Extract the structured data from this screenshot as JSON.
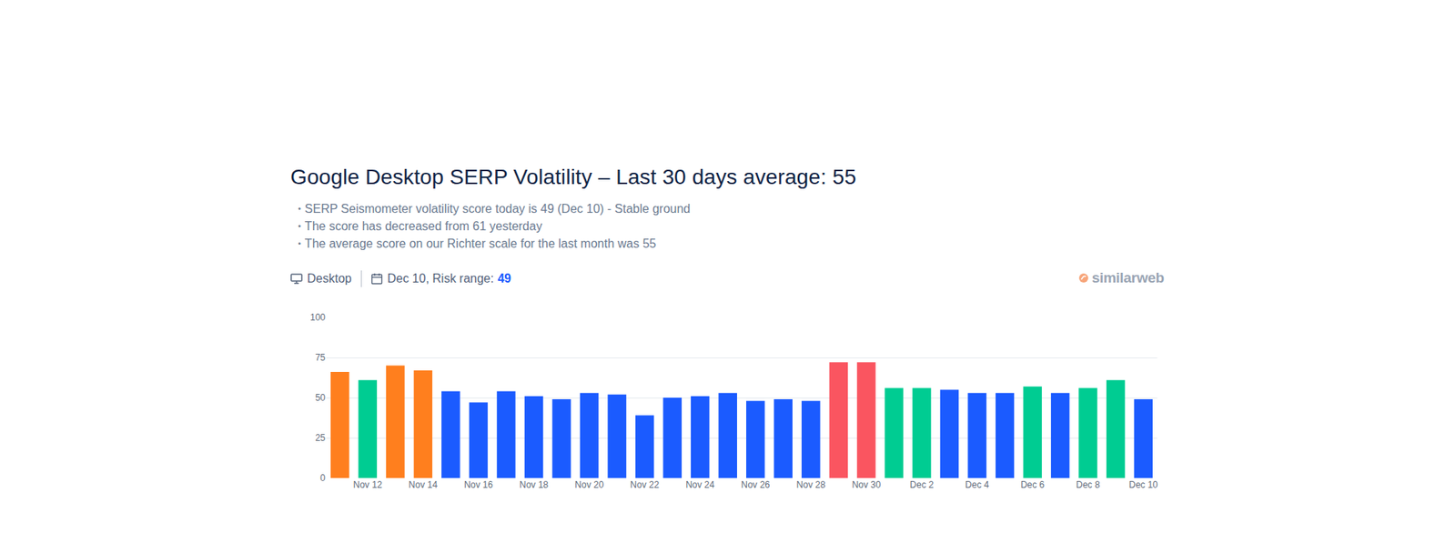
{
  "page": {
    "title": "Google Desktop SERP Volatility – Last 30 days average: 55",
    "bullets": [
      "SERP Seismometer volatility score today is 49 (Dec 10) - Stable ground",
      "The score has decreased from 61 yesterday",
      "The average score on our Richter scale for the last month was 55"
    ],
    "device": "Desktop",
    "date_label": "Dec 10, Risk range:",
    "risk_value": "49",
    "logo": "similarweb"
  },
  "chart_data": {
    "type": "bar",
    "categories": [
      null,
      "Nov 12",
      null,
      "Nov 14",
      null,
      "Nov 16",
      null,
      "Nov 18",
      null,
      "Nov 20",
      null,
      "Nov 22",
      null,
      "Nov 24",
      null,
      "Nov 26",
      null,
      "Nov 28",
      null,
      "Nov 30",
      null,
      "Dec 2",
      null,
      "Dec 4",
      null,
      "Dec 6",
      null,
      "Dec 8",
      null,
      "Dec 10"
    ],
    "values": [
      66,
      61,
      70,
      67,
      54,
      47,
      54,
      51,
      49,
      53,
      52,
      39,
      50,
      51,
      53,
      48,
      49,
      48,
      72,
      72,
      56,
      56,
      55,
      53,
      53,
      57,
      53,
      56,
      61,
      49
    ],
    "colors": [
      "#ff7f1e",
      "#00cc92",
      "#ff7f1e",
      "#ff7f1e",
      "#1b5bff",
      "#1b5bff",
      "#1b5bff",
      "#1b5bff",
      "#1b5bff",
      "#1b5bff",
      "#1b5bff",
      "#1b5bff",
      "#1b5bff",
      "#1b5bff",
      "#1b5bff",
      "#1b5bff",
      "#1b5bff",
      "#1b5bff",
      "#fa5560",
      "#fa5560",
      "#00cc92",
      "#00cc92",
      "#1b5bff",
      "#1b5bff",
      "#1b5bff",
      "#00cc92",
      "#1b5bff",
      "#00cc92",
      "#00cc92",
      "#1b5bff"
    ],
    "ylim": [
      0,
      100
    ],
    "yticks": [
      0,
      25,
      50,
      75,
      100
    ],
    "grid": true
  }
}
